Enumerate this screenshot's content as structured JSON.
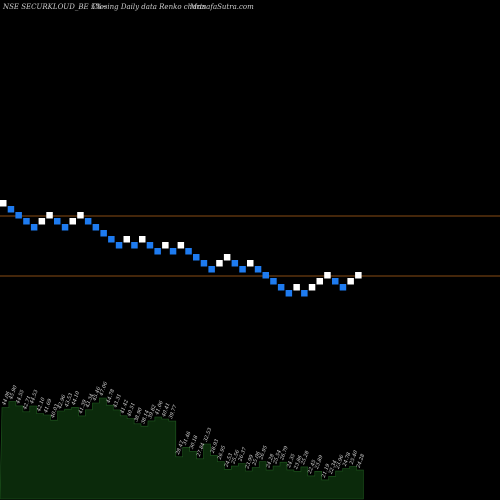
{
  "header": {
    "symbol_text": "NSE SECURKLOUD_BE 5%~",
    "chart_type_text": "Closing Daily data  Renko  charts",
    "site_text": "MunafaSutra.com"
  },
  "colors": {
    "background": "#000000",
    "up_brick": "#ffffff",
    "down_brick": "#1e7bf0",
    "level_line": "#b5651d",
    "volume_fill": "#0b2a0b",
    "volume_edge": "#1f5a1f"
  },
  "chart_data": {
    "type": "renko",
    "brick_direction_sequence": "UDDDDUUDDUUDDDDDUDUDDUDUDDDDUUDDUDDDDDUDUUUDDUU",
    "reference_levels": [
      "upper",
      "lower"
    ],
    "volume_labels": [
      "44.06",
      "45.90",
      "44.55",
      "42.71",
      "44.53",
      "42.10",
      "41.69",
      "40.03",
      "42.96",
      "43.53",
      "44.10",
      "41.39",
      "43.34",
      "45.46",
      "47.06",
      "44.78",
      "43.31",
      "41.42",
      "40.51",
      "38.90",
      "38.14",
      "39.82",
      "41.06",
      "40.41",
      "39.77",
      "28.47",
      "31.46",
      "30.18",
      "27.84",
      "32.53",
      "28.93",
      "26.95",
      "24.53",
      "25.56",
      "26.37",
      "23.99",
      "25.06",
      "26.95",
      "24.28",
      "25.54",
      "26.79",
      "24.35",
      "23.86",
      "25.28",
      "22.45",
      "23.89",
      "21.19",
      "22.34",
      "23.96",
      "24.78",
      "25.40",
      "24.28"
    ]
  }
}
